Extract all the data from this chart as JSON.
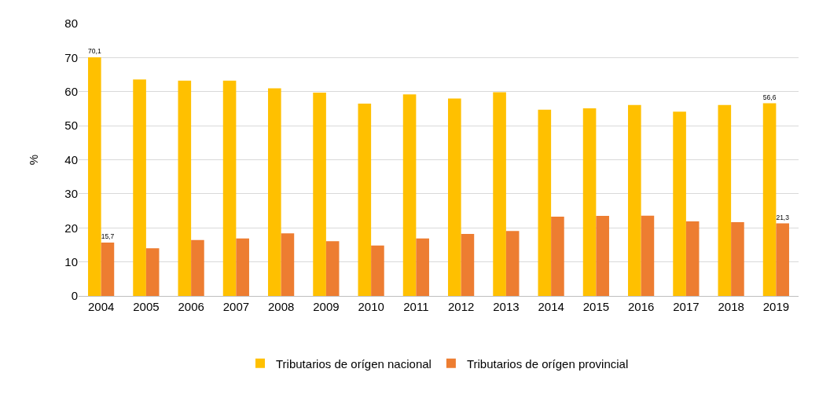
{
  "chart_data": {
    "type": "bar",
    "ylabel": "%",
    "categories": [
      "2004",
      "2005",
      "2006",
      "2007",
      "2008",
      "2009",
      "2010",
      "2011",
      "2012",
      "2013",
      "2014",
      "2015",
      "2016",
      "2017",
      "2018",
      "2019"
    ],
    "series": [
      {
        "name": "Tributarios de orígen nacional",
        "color": "#ffc000",
        "values": [
          70.1,
          63.6,
          63.2,
          63.2,
          61.0,
          59.7,
          56.5,
          59.2,
          58.0,
          59.8,
          54.7,
          55.1,
          56.1,
          54.1,
          56.1,
          56.6
        ],
        "value_labels": [
          "70,1",
          null,
          null,
          null,
          null,
          null,
          null,
          null,
          null,
          null,
          null,
          null,
          null,
          null,
          null,
          "56,6"
        ]
      },
      {
        "name": "Tributarios de orígen provincial",
        "color": "#ed7d31",
        "values": [
          15.7,
          14.0,
          16.4,
          16.9,
          18.4,
          16.1,
          14.8,
          16.9,
          18.2,
          19.1,
          23.3,
          23.5,
          23.6,
          21.9,
          21.7,
          21.3
        ],
        "value_labels": [
          "15,7",
          null,
          null,
          null,
          null,
          null,
          null,
          null,
          null,
          null,
          null,
          null,
          null,
          null,
          null,
          "21,3"
        ]
      }
    ],
    "ylim": [
      0,
      80
    ],
    "yticks": [
      0,
      10,
      20,
      30,
      40,
      50,
      60,
      70,
      80
    ],
    "grid": "y",
    "legend": "bottom"
  }
}
